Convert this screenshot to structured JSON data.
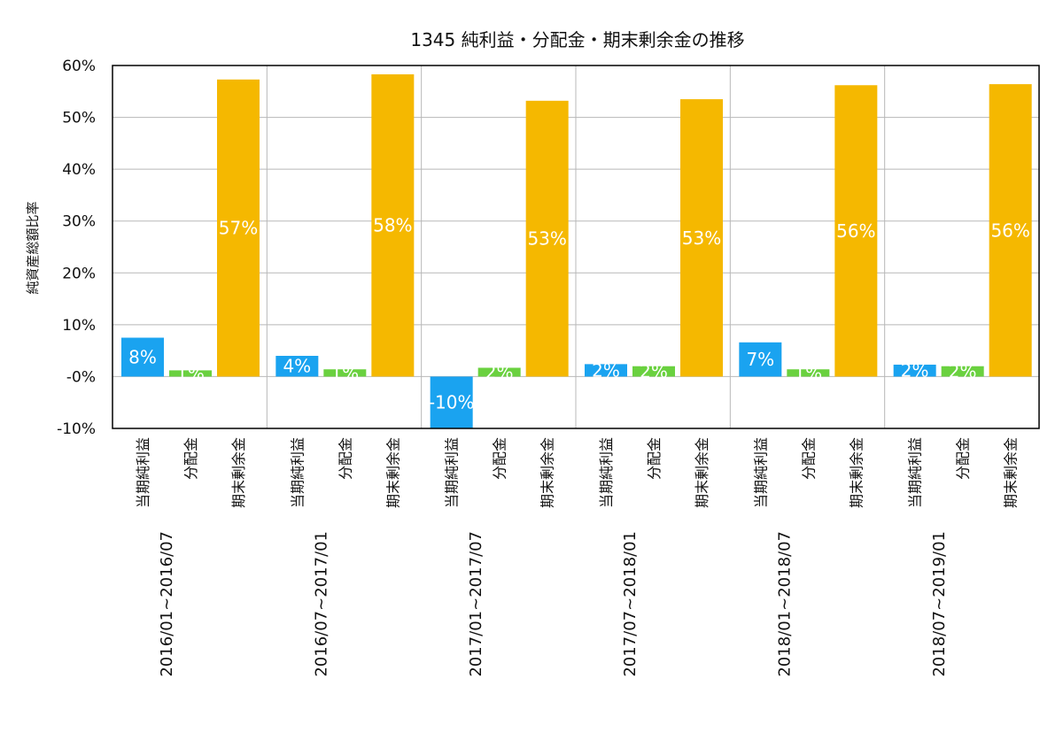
{
  "chart_data": {
    "type": "bar",
    "title": "1345 純利益・分配金・期末剰余金の推移",
    "ylabel": "純資産総額比率",
    "xlabel": "",
    "ylim": [
      -10,
      60
    ],
    "yticks": [
      "60%",
      "50%",
      "40%",
      "30%",
      "20%",
      "10%",
      "-0%",
      "-10%"
    ],
    "grid": true,
    "series_labels": [
      "当期純利益",
      "分配金",
      "期末剰余金"
    ],
    "colors": [
      "#1aa3f0",
      "#6ad13f",
      "#f5b800"
    ],
    "groups": [
      {
        "period": "2016/01~2016/07",
        "values": [
          7.5,
          1.2,
          57.3
        ],
        "labels": [
          "8%",
          "1%",
          "57%"
        ]
      },
      {
        "period": "2016/07~2017/01",
        "values": [
          4.0,
          1.4,
          58.3
        ],
        "labels": [
          "4%",
          "1%",
          "58%"
        ]
      },
      {
        "period": "2017/01~2017/07",
        "values": [
          -10.5,
          1.7,
          53.2
        ],
        "labels": [
          "-10%",
          "2%",
          "53%"
        ]
      },
      {
        "period": "2017/07~2018/01",
        "values": [
          2.4,
          2.0,
          53.5
        ],
        "labels": [
          "2%",
          "2%",
          "53%"
        ]
      },
      {
        "period": "2018/01~2018/07",
        "values": [
          6.6,
          1.4,
          56.2
        ],
        "labels": [
          "7%",
          "1%",
          "56%"
        ]
      },
      {
        "period": "2018/07~2019/01",
        "values": [
          2.3,
          2.0,
          56.4
        ],
        "labels": [
          "2%",
          "2%",
          "56%"
        ]
      }
    ]
  }
}
